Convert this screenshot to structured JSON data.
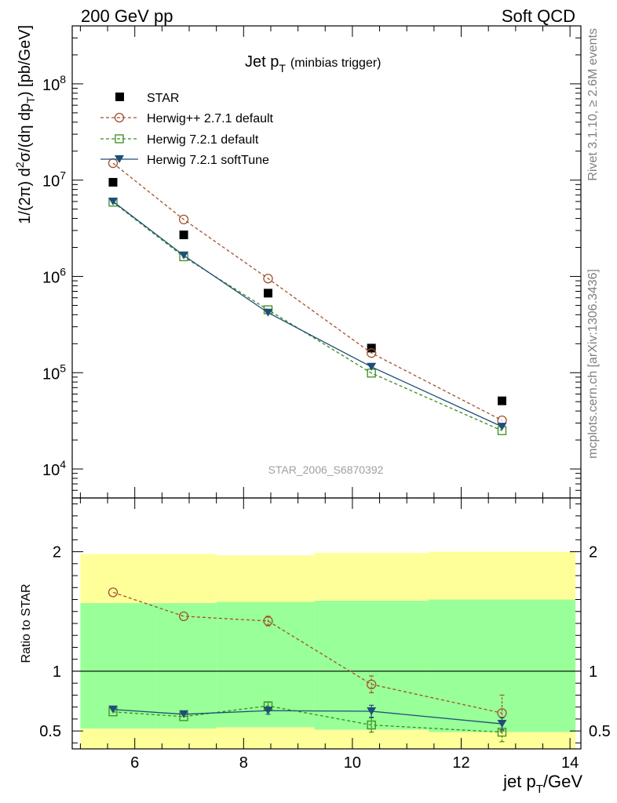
{
  "header": {
    "left": "200 GeV pp",
    "right": "Soft QCD"
  },
  "side": {
    "rivet": "Rivet 3.1.10, ≥ 2.6M events",
    "mcplots": "mcplots.cern.ch [arXiv:1306.3436]"
  },
  "colors": {
    "star": "#000000",
    "herwigpp": "#a0522d",
    "herwig72default": "#3a8c1a",
    "herwig72soft": "#1f4e79",
    "band_outer": "#ffff99",
    "band_inner": "#99ff99"
  },
  "chart_data": [
    {
      "type": "scatter",
      "title_main": "Jet p",
      "title_sub": "T",
      "title_note": "(minbias trigger)",
      "watermark": "STAR_2006_S6870392",
      "ylabel_pre": "1/(2π) d",
      "ylabel_sup": "2",
      "ylabel_mid": "σ/(dη dp",
      "ylabel_sub": "T",
      "ylabel_post": ") [pb/GeV]",
      "yscale": "log",
      "xlim": [
        4.85,
        14.2
      ],
      "ylim": [
        5000,
        400000000
      ],
      "yticks": [
        {
          "v": 10000,
          "base": "10",
          "exp": "4"
        },
        {
          "v": 100000,
          "base": "10",
          "exp": "5"
        },
        {
          "v": 1000000,
          "base": "10",
          "exp": "6"
        },
        {
          "v": 10000000,
          "base": "10",
          "exp": "7"
        },
        {
          "v": 100000000,
          "base": "10",
          "exp": "8"
        }
      ],
      "series": [
        {
          "name": "STAR",
          "style": "data",
          "x": [
            5.6,
            6.9,
            8.45,
            10.35,
            12.75
          ],
          "y": [
            9500000,
            2700000,
            670000,
            180000,
            51000
          ]
        },
        {
          "name": "Herwig++ 2.7.1 default",
          "style": "circle",
          "x": [
            5.6,
            6.9,
            8.45,
            10.35,
            12.75
          ],
          "y": [
            15000000,
            3900000,
            950000,
            160000,
            32000
          ]
        },
        {
          "name": "Herwig 7.2.1 default",
          "style": "square",
          "x": [
            5.6,
            6.9,
            8.45,
            10.35,
            12.75
          ],
          "y": [
            5900000,
            1600000,
            450000,
            99000,
            25000
          ]
        },
        {
          "name": "Herwig 7.2.1 softTune",
          "style": "triangle",
          "x": [
            5.6,
            6.9,
            8.45,
            10.35,
            12.75
          ],
          "y": [
            6000000,
            1650000,
            420000,
            115000,
            27500
          ]
        }
      ]
    },
    {
      "type": "scatter",
      "xlabel_pre": "jet p",
      "xlabel_sub": "T",
      "xlabel_post": "/GeV",
      "ylabel": "Ratio to STAR",
      "xlim": [
        4.85,
        14.2
      ],
      "ylim": [
        0.35,
        2.45
      ],
      "xticks": [
        "6",
        "8",
        "10",
        "12",
        "14"
      ],
      "yticks": [
        "0.5",
        "1",
        "2"
      ],
      "bands": [
        {
          "x0": 5.0,
          "x1": 6.4,
          "outer": [
            0.52,
            1.98
          ],
          "inner": [
            0.52,
            1.57
          ]
        },
        {
          "x0": 6.4,
          "x1": 7.5,
          "outer": [
            0.52,
            1.98
          ],
          "inner": [
            0.52,
            1.57
          ]
        },
        {
          "x0": 7.5,
          "x1": 9.3,
          "outer": [
            0.53,
            1.97
          ],
          "inner": [
            0.53,
            1.58
          ]
        },
        {
          "x0": 9.3,
          "x1": 11.4,
          "outer": [
            0.51,
            1.99
          ],
          "inner": [
            0.51,
            1.59
          ]
        },
        {
          "x0": 11.4,
          "x1": 14.1,
          "outer": [
            0.49,
            2.0
          ],
          "inner": [
            0.49,
            1.6
          ]
        }
      ],
      "series": [
        {
          "name": "Herwig++ 2.7.1 default",
          "style": "circle",
          "x": [
            5.6,
            6.9,
            8.45,
            10.35,
            12.75
          ],
          "y": [
            1.66,
            1.46,
            1.42,
            0.89,
            0.65
          ],
          "err": [
            0.0,
            0.0,
            0.04,
            0.07,
            0.15
          ]
        },
        {
          "name": "Herwig 7.2.1 default",
          "style": "square",
          "x": [
            5.6,
            6.9,
            8.45,
            10.35,
            12.75
          ],
          "y": [
            0.66,
            0.62,
            0.71,
            0.55,
            0.49
          ],
          "err": [
            0.0,
            0.0,
            0.03,
            0.06,
            0.08
          ]
        },
        {
          "name": "Herwig 7.2.1 softTune",
          "style": "triangle",
          "x": [
            5.6,
            6.9,
            8.45,
            10.35,
            12.75
          ],
          "y": [
            0.68,
            0.64,
            0.67,
            0.665,
            0.56
          ],
          "err": [
            0.0,
            0.0,
            0.03,
            0.05,
            0.05
          ]
        }
      ]
    }
  ]
}
